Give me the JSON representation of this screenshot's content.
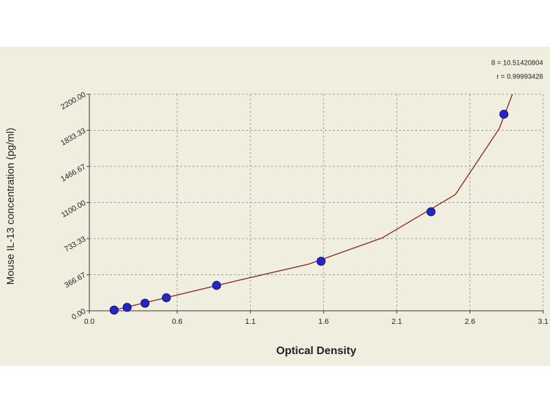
{
  "chart_data": {
    "type": "scatter",
    "xlabel": "Optical Density",
    "ylabel": "Mouse IL-13 concentration (pg/ml)",
    "annotations": [
      "8 = 10.51420804",
      "r = 0.99993428"
    ],
    "x": [
      0.169,
      0.258,
      0.38,
      0.526,
      0.869,
      1.583,
      2.334,
      2.832
    ],
    "values": [
      7,
      35,
      77,
      133,
      258,
      503,
      1006,
      1997
    ],
    "color": "#2424c8",
    "fit": {
      "x": [
        0.15,
        0.5,
        1.0,
        1.5,
        2.0,
        2.5,
        2.8,
        2.89
      ],
      "values": [
        0,
        125,
        303,
        475,
        740,
        1180,
        1850,
        2200
      ],
      "color": "#8b1a1a"
    },
    "xlim": [
      0,
      3.1
    ],
    "xticks": [
      {
        "value": 0,
        "label": "0.0"
      },
      0.6,
      1.1,
      1.6,
      2.1,
      2.6,
      3.1
    ],
    "ylim": [
      0,
      2200
    ],
    "yticks": [
      {
        "value": 0,
        "label": "0.00"
      },
      {
        "value": 366.67,
        "label": "366.67"
      },
      {
        "value": 733.33,
        "label": "733.33"
      },
      {
        "value": 1100,
        "label": "1100.00"
      },
      {
        "value": 1466.67,
        "label": "1466.67"
      },
      {
        "value": 1833.33,
        "label": "1833.33"
      },
      {
        "value": 2200,
        "label": "2200.00"
      }
    ],
    "grid": true
  }
}
